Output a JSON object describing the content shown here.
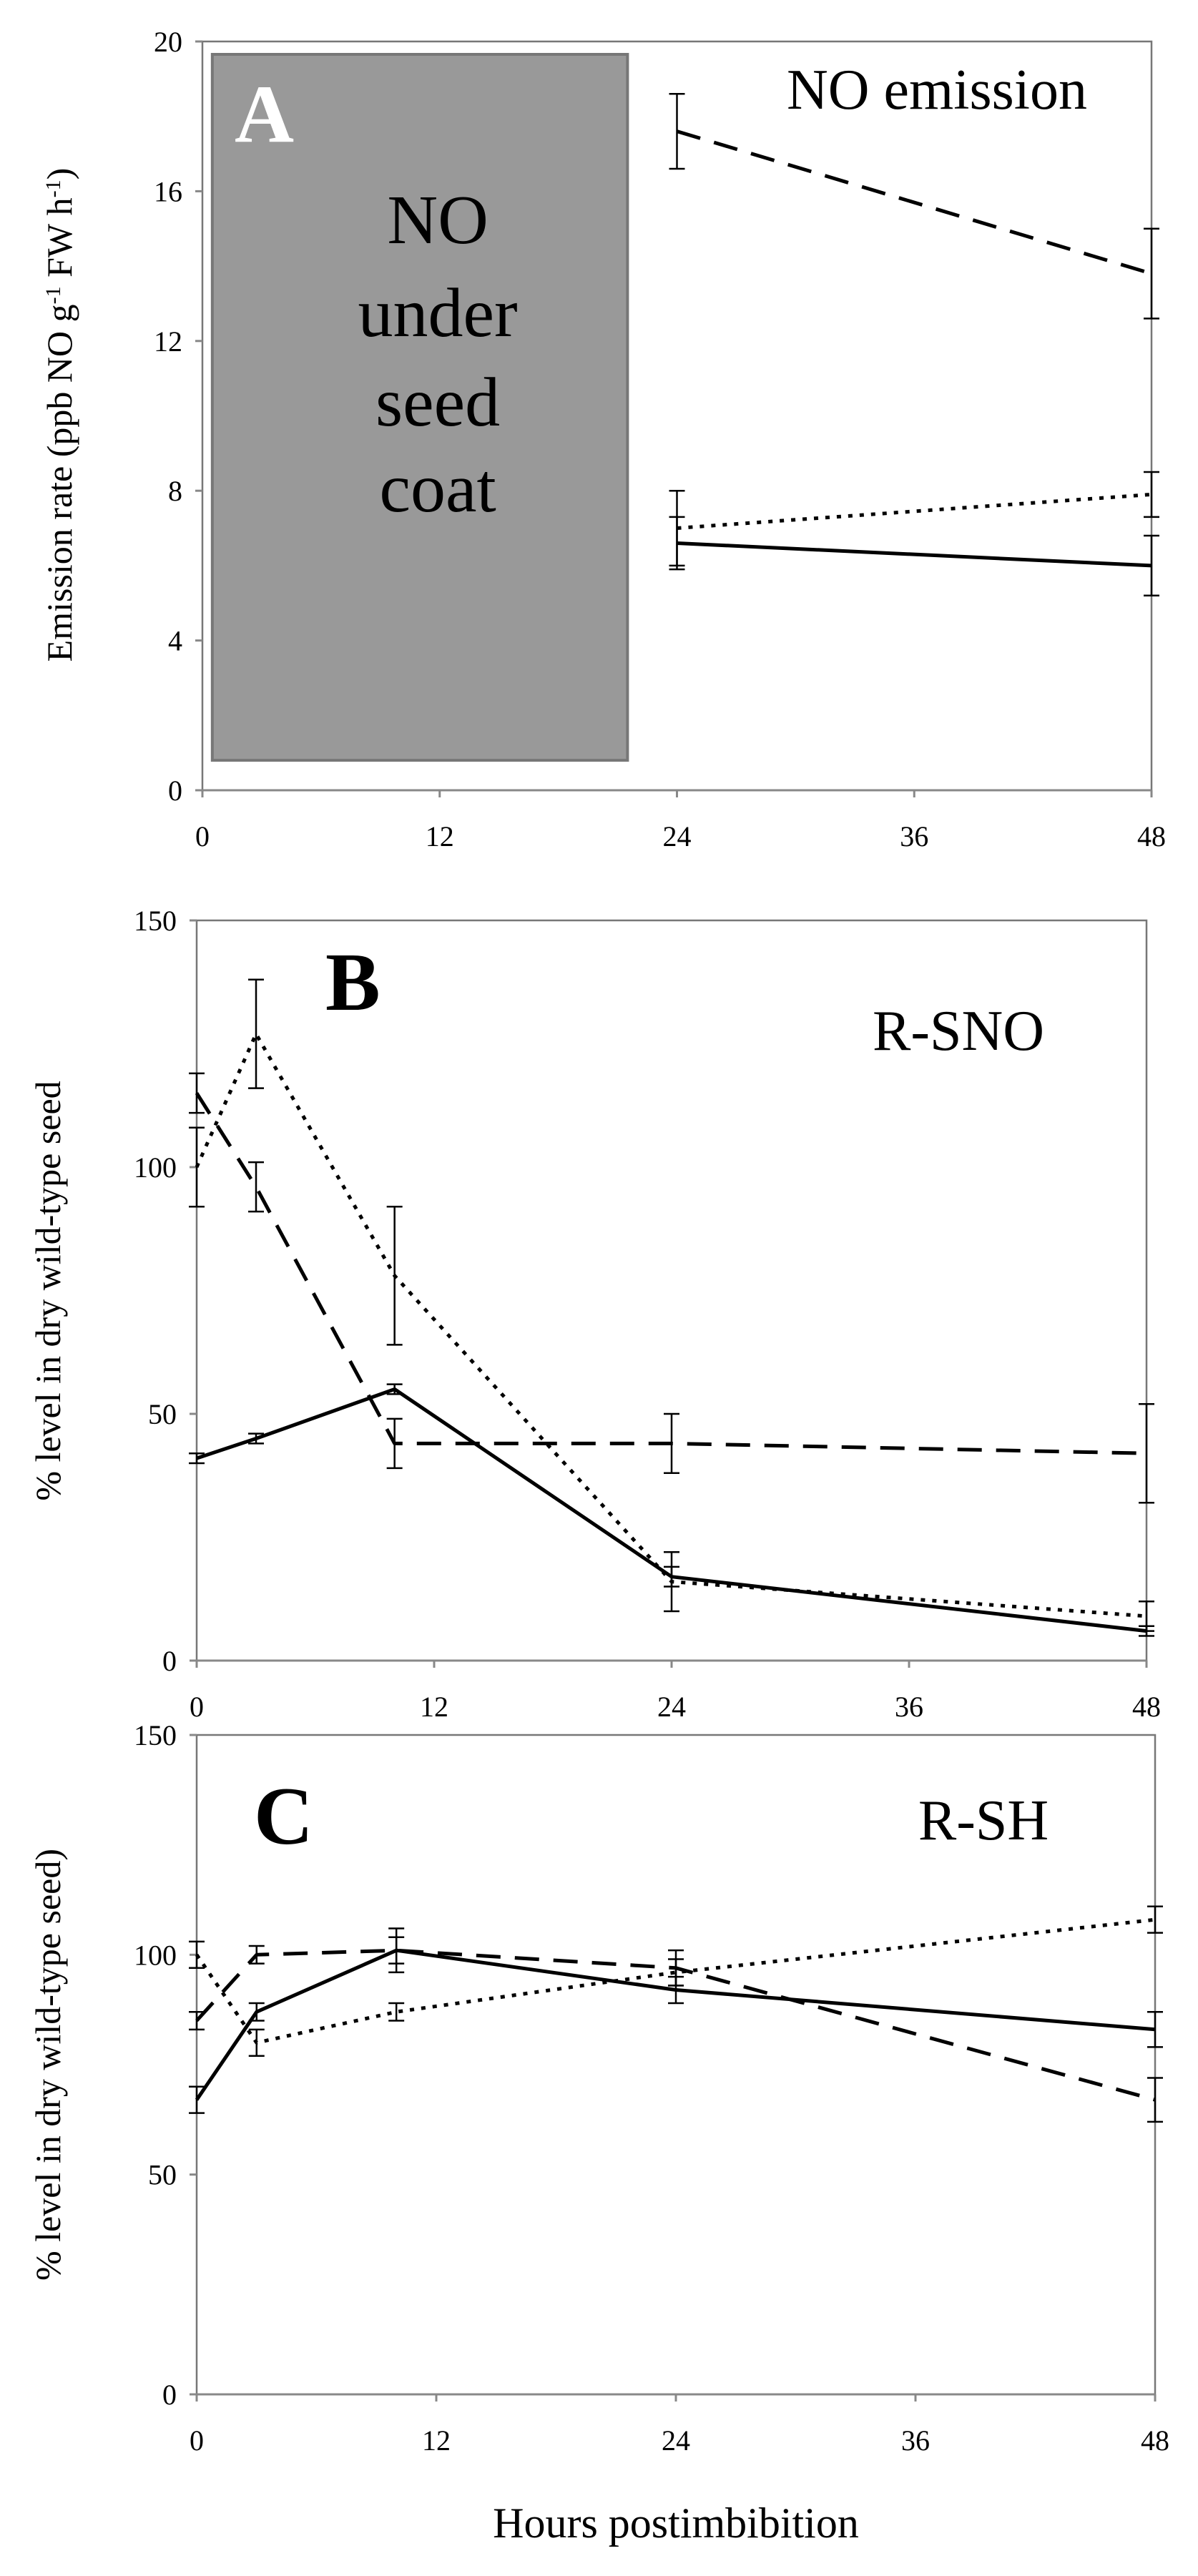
{
  "figure": {
    "xlabel": "Hours postimbibition",
    "series_styles": [
      {
        "name": "solid",
        "dash": "none"
      },
      {
        "name": "dashed",
        "dash": "34 20"
      },
      {
        "name": "dotted",
        "dash": "6 10"
      }
    ]
  },
  "chart_data": [
    {
      "type": "line",
      "panel": "A",
      "annotation": "NO emission",
      "ylabel_parts": [
        "Emission rate (ppb NO g",
        "-1",
        " FW h",
        "-1",
        ")"
      ],
      "shaded_note": [
        "NO",
        "under",
        "seed",
        "coat"
      ],
      "shaded_range_hours": [
        0.5,
        21.5
      ],
      "shaded_color": "#999999",
      "xlim": [
        0,
        48
      ],
      "ylim": [
        0,
        20
      ],
      "xticks": [
        "0",
        "12",
        "24",
        "36",
        "48"
      ],
      "yticks": [
        "0",
        "4",
        "8",
        "12",
        "16",
        "20"
      ],
      "series": [
        {
          "name": "solid",
          "x": [
            24,
            48
          ],
          "y": [
            6.6,
            6.0
          ],
          "err": [
            0.7,
            0.8
          ]
        },
        {
          "name": "dashed",
          "x": [
            24,
            48
          ],
          "y": [
            17.6,
            13.8
          ],
          "err": [
            1.0,
            1.2
          ]
        },
        {
          "name": "dotted",
          "x": [
            24,
            48
          ],
          "y": [
            7.0,
            7.9
          ],
          "err": [
            1.0,
            0.6
          ]
        }
      ]
    },
    {
      "type": "line",
      "panel": "B",
      "annotation": "R-SNO",
      "ylabel": "% level in dry wild-type seed",
      "xlim": [
        0,
        48
      ],
      "ylim": [
        0,
        150
      ],
      "xticks": [
        "0",
        "12",
        "24",
        "36",
        "48"
      ],
      "yticks": [
        "0",
        "50",
        "100",
        "150"
      ],
      "series": [
        {
          "name": "solid",
          "x": [
            0,
            3,
            10,
            24,
            48
          ],
          "y": [
            41,
            45,
            55,
            17,
            6
          ],
          "err": [
            1,
            1,
            1,
            2,
            1
          ]
        },
        {
          "name": "dashed",
          "x": [
            0,
            3,
            10,
            24,
            48
          ],
          "y": [
            115,
            96,
            44,
            44,
            42
          ],
          "err": [
            4,
            5,
            5,
            6,
            10
          ]
        },
        {
          "name": "dotted",
          "x": [
            0,
            3,
            10,
            24,
            48
          ],
          "y": [
            100,
            127,
            78,
            16,
            9
          ],
          "err": [
            8,
            11,
            14,
            6,
            3
          ]
        }
      ]
    },
    {
      "type": "line",
      "panel": "C",
      "annotation": "R-SH",
      "ylabel": "% level in dry wild-type seed)",
      "xlim": [
        0,
        48
      ],
      "ylim": [
        0,
        150
      ],
      "xticks": [
        "0",
        "12",
        "24",
        "36",
        "48"
      ],
      "yticks": [
        "0",
        "50",
        "100",
        "150"
      ],
      "series": [
        {
          "name": "solid",
          "x": [
            0,
            3,
            10,
            24,
            48
          ],
          "y": [
            67,
            87,
            101,
            92,
            83
          ],
          "err": [
            3,
            2,
            3,
            3,
            4
          ]
        },
        {
          "name": "dashed",
          "x": [
            0,
            3,
            10,
            24,
            48
          ],
          "y": [
            85,
            100,
            101,
            97,
            67
          ],
          "err": [
            2,
            2,
            5,
            4,
            5
          ]
        },
        {
          "name": "dotted",
          "x": [
            0,
            3,
            10,
            24,
            48
          ],
          "y": [
            100,
            80,
            87,
            96,
            108
          ],
          "err": [
            3,
            3,
            2,
            3,
            3
          ]
        }
      ]
    }
  ]
}
